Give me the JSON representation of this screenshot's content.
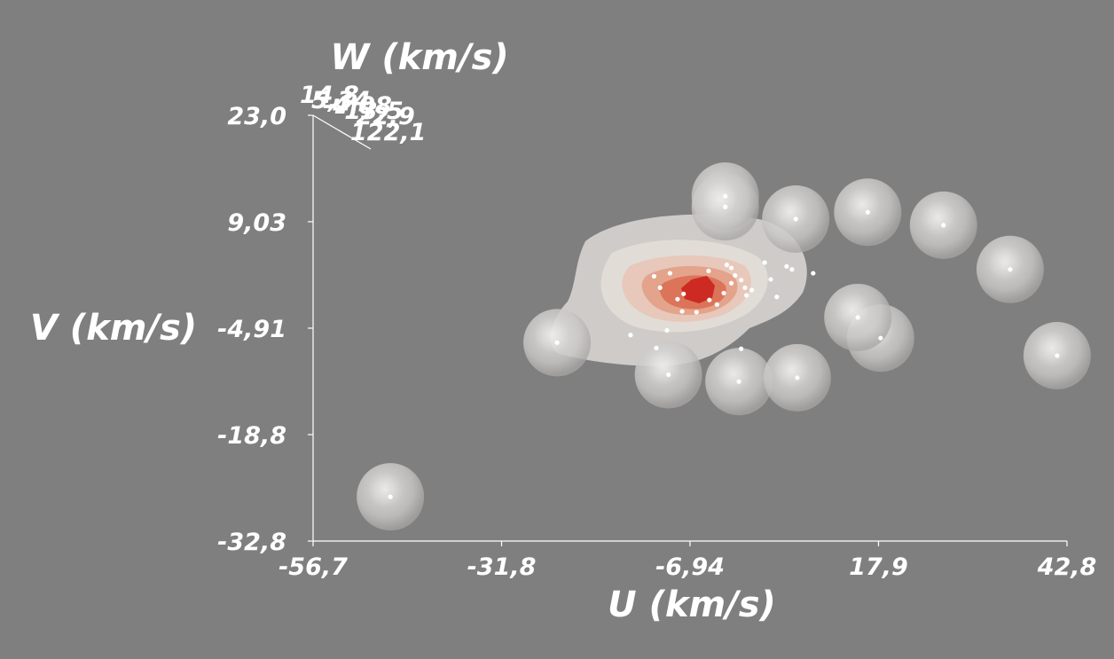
{
  "chart_data": {
    "type": "scatter",
    "title": "",
    "xlabel": "U (km/s)",
    "ylabel": "V (km/s)",
    "zlabel": "W (km/s)",
    "xlim": [
      -56.7,
      42.8
    ],
    "ylim": [
      -32.8,
      23.0
    ],
    "x_ticks": [
      "-56,7",
      "-31,8",
      "-6,94",
      "17,9",
      "42,8"
    ],
    "y_ticks": [
      "23,0",
      "9,03",
      "-4,91",
      "-18,8",
      "-32,8"
    ],
    "z_ticks": [
      "14,8",
      "5,34",
      "-4,08",
      "-13,5",
      "-22,9"
    ],
    "z_tick_overlap": "122,1",
    "grid": false,
    "legend": "none",
    "density_colors": [
      "#e8e4e1",
      "#e8c2b2",
      "#e39a80",
      "#d96c50",
      "#cc2a22"
    ],
    "background": "#7f7f7f",
    "series": [
      {
        "values": [
          [
            -46.5,
            -27.0
          ],
          [
            -24.5,
            -6.8
          ],
          [
            -9.8,
            -11.0
          ],
          [
            -0.5,
            -11.9
          ],
          [
            7.2,
            -11.4
          ],
          [
            18.2,
            -6.2
          ],
          [
            15.2,
            -3.5
          ],
          [
            41.5,
            -8.5
          ],
          [
            35.3,
            2.8
          ],
          [
            26.5,
            8.6
          ],
          [
            16.5,
            10.3
          ],
          [
            7.0,
            9.4
          ],
          [
            -2.3,
            12.4
          ],
          [
            -2.3,
            11.0
          ],
          [
            -1.0,
            2.0
          ],
          [
            -0.2,
            1.4
          ],
          [
            0.3,
            0.4
          ],
          [
            -1.5,
            1.0
          ],
          [
            1.2,
            0.1
          ],
          [
            0.5,
            -0.6
          ],
          [
            -2.5,
            -0.3
          ],
          [
            -3.4,
            -1.8
          ],
          [
            -4.4,
            -1.2
          ],
          [
            -6.1,
            -2.8
          ],
          [
            -8.6,
            -1.1
          ],
          [
            -9.6,
            2.3
          ],
          [
            -11.7,
            1.9
          ],
          [
            -10.9,
            0.4
          ],
          [
            -4.5,
            2.6
          ],
          [
            -2.1,
            3.4
          ],
          [
            3.7,
            1.5
          ],
          [
            5.8,
            3.2
          ],
          [
            9.3,
            2.3
          ],
          [
            4.5,
            -0.8
          ],
          [
            -7.8,
            -0.4
          ],
          [
            -8.0,
            -2.7
          ],
          [
            -10.0,
            -5.2
          ],
          [
            -14.8,
            -5.8
          ],
          [
            -11.4,
            -7.5
          ],
          [
            -0.2,
            -7.6
          ],
          [
            -1.5,
            3.0
          ],
          [
            2.9,
            3.7
          ],
          [
            6.5,
            2.8
          ]
        ]
      }
    ]
  }
}
